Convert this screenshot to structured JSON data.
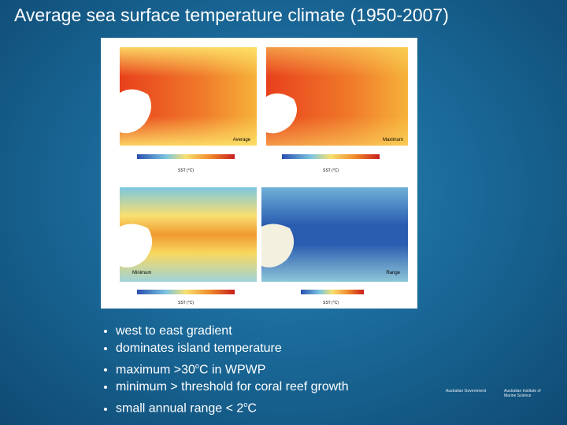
{
  "slide": {
    "title": "Average sea surface temperature climate (1950-2007)",
    "panels": [
      {
        "label": "Average",
        "colorbar_label": "SST (°C)"
      },
      {
        "label": "Maximum",
        "colorbar_label": "SST (°C)"
      },
      {
        "label": "Minimum",
        "colorbar_label": "SST (°C)"
      },
      {
        "label": "Range",
        "colorbar_label": "SST (°C)"
      }
    ],
    "bullets": [
      {
        "text": "west to east gradient"
      },
      {
        "text": "dominates island temperature"
      },
      {
        "text": "maximum >30",
        "sup": "o",
        "after": "C in WPWP"
      },
      {
        "text": "minimum > threshold for coral reef growth"
      },
      {
        "text": "small annual range < 2",
        "sup": "o",
        "after": "C"
      }
    ],
    "logos": [
      "Australian Government",
      "Australian Institute of Marine Science"
    ]
  }
}
